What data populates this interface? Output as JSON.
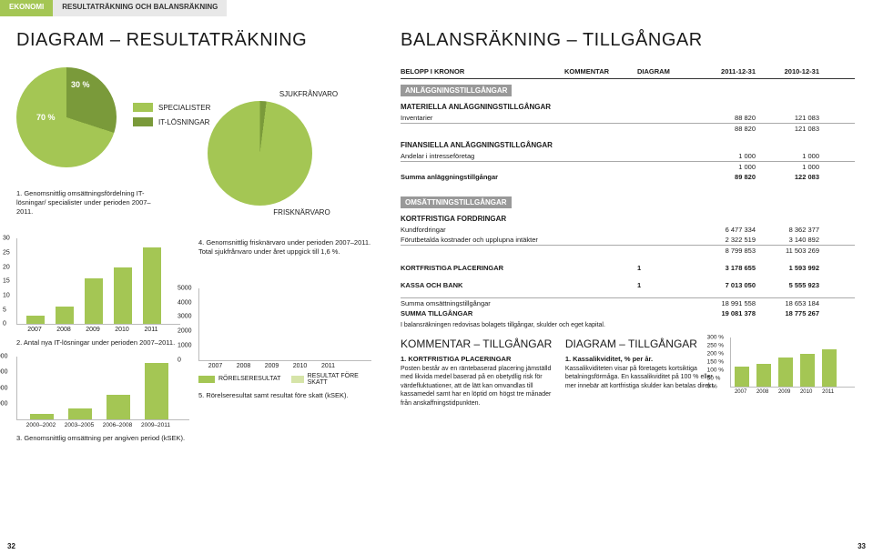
{
  "tabs": {
    "t0": "EKONOMI",
    "t1": "RESULTATRÄKNING OCH BALANSRÄKNING"
  },
  "left": {
    "title_a": "DIAGRAM",
    "title_b": "RESULTATRÄKNING",
    "pie1": {
      "colors": [
        "#a4c654",
        "#7a9a3a"
      ],
      "slices": [
        70,
        30
      ],
      "lbl_70": "70 %",
      "lbl_30": "30 %",
      "legend": {
        "spec": "SPECIALISTER",
        "it": "IT-LÖSNINGAR"
      }
    },
    "cap1": "1. Genomsnittlig omsättningsfördelning IT-lösningar/ specialister under perioden 2007–2011.",
    "pie2": {
      "color_main": "#a4c654",
      "color_sliver": "#7a9a3a",
      "lbl_top": "SJUKFRÅNVARO",
      "lbl_bot": "FRISKNÄRVARO"
    },
    "chart2": {
      "categories": [
        "2007",
        "2008",
        "2009",
        "2010",
        "2011"
      ],
      "values": [
        3,
        6,
        16,
        20,
        27
      ],
      "ylim": [
        0,
        30
      ],
      "yticks": [
        0,
        5,
        10,
        15,
        20,
        25,
        30
      ],
      "color": "#a4c654"
    },
    "cap2": "2. Antal nya IT-lösningar under perioden 2007–2011.",
    "chart4cap": "4. Genomsnittlig frisknärvaro under perioden 2007–2011. Total sjukfrånvaro under året uppgick till 1,6 %.",
    "chart5": {
      "categories": [
        "2007",
        "2008",
        "2009",
        "2010",
        "2011"
      ],
      "s1": [
        600,
        1300,
        2200,
        3100,
        4600
      ],
      "s2": [
        500,
        1100,
        1900,
        2700,
        4100
      ],
      "ylim": [
        0,
        5000
      ],
      "yticks": [
        0,
        1000,
        2000,
        3000,
        4000,
        5000
      ],
      "c1": "#a4c654",
      "c2": "#d6e4a8",
      "leg1": "RÖRELSERESULTAT",
      "leg2": "RESULTAT FÖRE SKATT",
      "cap": "5. Rörelseresultat samt resultat före skatt (kSEK)."
    },
    "chart3": {
      "categories": [
        "2000–2002",
        "2003–2005",
        "2006–2008",
        "2009–2011"
      ],
      "values": [
        3500,
        7200,
        15500,
        36000
      ],
      "ylim": [
        0,
        40000
      ],
      "yticks": [
        10000,
        20000,
        30000,
        40000
      ],
      "color": "#a4c654",
      "cap": "3. Genomsnittlig omsättning per angiven period (kSEK)."
    }
  },
  "right": {
    "title_a": "BALANSRÄKNING",
    "title_b": "TILLGÅNGAR",
    "th": {
      "c0": "BELOPP I KRONOR",
      "c1": "KOMMENTAR",
      "c2": "DIAGRAM",
      "c3": "2011-12-31",
      "c4": "2010-12-31"
    },
    "sec1": "ANLÄGGNINGSTILLGÅNGAR",
    "sub1": "MATERIELLA ANLÄGGNINGSTILLGÅNGAR",
    "r1": {
      "l": "Inventarier",
      "a": "88 820",
      "b": "121 083"
    },
    "r2": {
      "a": "88 820",
      "b": "121 083"
    },
    "sub2": "FINANSIELLA ANLÄGGNINGSTILLGÅNGAR",
    "r3": {
      "l": "Andelar i intresseföretag",
      "a": "1 000",
      "b": "1 000"
    },
    "r4": {
      "a": "1 000",
      "b": "1 000"
    },
    "r5": {
      "l": "Summa anläggningstillgångar",
      "a": "89 820",
      "b": "122 083"
    },
    "sec2": "OMSÄTTNINGSTILLGÅNGAR",
    "sub3": "KORTFRISTIGA FORDRINGAR",
    "r6": {
      "l": "Kundfordringar",
      "a": "6 477 334",
      "b": "8 362 377"
    },
    "r7": {
      "l": "Förutbetalda kostnader och upplupna intäkter",
      "a": "2 322 519",
      "b": "3 140 892"
    },
    "r8": {
      "a": "8 799 853",
      "b": "11 503 269"
    },
    "r9": {
      "l": "KORTFRISTIGA PLACERINGAR",
      "k": "1",
      "a": "3 178 655",
      "b": "1 593 992"
    },
    "r10": {
      "l": "KASSA OCH BANK",
      "d": "1",
      "a": "7 013 050",
      "b": "5 555 923"
    },
    "r11": {
      "l": "Summa omsättningstillgångar",
      "a": "18 991 558",
      "b": "18 653 184"
    },
    "r12": {
      "l": "SUMMA TILLGÅNGAR",
      "a": "19 081 378",
      "b": "18 775 267"
    },
    "note": "I balansräkningen redovisas bolagets tillgångar, skulder och eget kapital.",
    "komm": {
      "h": "KOMMENTAR – TILLGÅNGAR",
      "sh": "1. KORTFRISTIGA PLACERINGAR",
      "p": "Posten består av en räntebaserad placering jämställd med likvida medel baserad på en obetydlig risk för värdefluktuationer, att de lätt kan omvandlas till kassamedel samt har en löptid om högst tre månader från anskaffningstidpunkten."
    },
    "diag": {
      "h": "DIAGRAM – TILLGÅNGAR",
      "sh": "1. Kassalikviditet, % per år.",
      "p": "Kassalikviditeten visar på företagets kortsiktiga betalningsförmåga. En kassalikviditet på 100 % eller mer innebär att kortfristiga skulder kan betalas direkt."
    },
    "mini": {
      "categories": [
        "2007",
        "2008",
        "2009",
        "2010",
        "2011"
      ],
      "values": [
        125,
        140,
        180,
        200,
        230
      ],
      "ylim": [
        0,
        300
      ],
      "yticks": [
        "0 %",
        "50 %",
        "100 %",
        "150 %",
        "200 %",
        "250 %",
        "300 %"
      ],
      "color": "#a4c654"
    }
  },
  "pagenum_l": "32",
  "pagenum_r": "33"
}
